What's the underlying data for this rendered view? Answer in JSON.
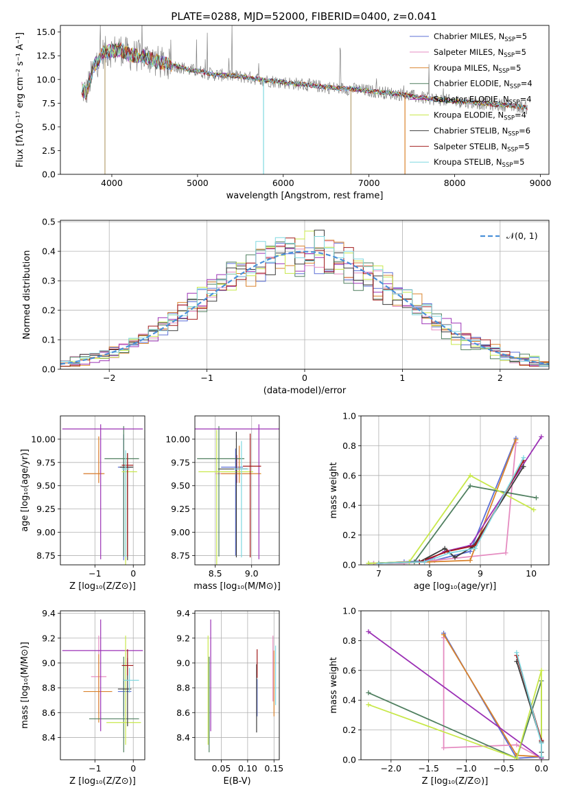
{
  "figure": {
    "title": "PLATE=0288, MJD=52000, FIBERID=0400, z=0.041"
  },
  "models": [
    {
      "name": "Chabrier MILES",
      "nssp": "5",
      "color": "#5b6fd6"
    },
    {
      "name": "Salpeter MILES",
      "nssp": "5",
      "color": "#e58bc0"
    },
    {
      "name": "Kroupa MILES",
      "nssp": "5",
      "color": "#d9822b"
    },
    {
      "name": "Chabrier ELODIE",
      "nssp": "4",
      "color": "#4f7f5f"
    },
    {
      "name": "Salpeter ELODIE",
      "nssp": "4",
      "color": "#9b30b5"
    },
    {
      "name": "Kroupa ELODIE",
      "nssp": "4",
      "color": "#c8e84a"
    },
    {
      "name": "Chabrier STELIB",
      "nssp": "6",
      "color": "#3a3a3a"
    },
    {
      "name": "Salpeter STELIB",
      "nssp": "5",
      "color": "#a01818"
    },
    {
      "name": "Kroupa STELIB",
      "nssp": "5",
      "color": "#7fd8e0"
    }
  ],
  "legend_nssp_label": "N",
  "legend_nssp_sub": "SSP",
  "chart_data": [
    {
      "id": "spectrum",
      "type": "line",
      "xlabel": "wavelength [Angstrom, rest frame]",
      "ylabel": "Flux [fλ10⁻¹⁷ erg cm⁻² s⁻¹ A⁻¹]",
      "xlim": [
        3400,
        9100
      ],
      "ylim": [
        0,
        15.7
      ],
      "xticks": [
        4000,
        5000,
        6000,
        7000,
        8000,
        9000
      ],
      "yticks": [
        0.0,
        2.5,
        5.0,
        7.5,
        10.0,
        12.5,
        15.0
      ],
      "data_color": "#808080",
      "continuum": {
        "x": [
          3650,
          3700,
          3800,
          3900,
          4000,
          4100,
          4200,
          4300,
          4400,
          4500,
          4600,
          4700,
          4800,
          4900,
          5000,
          5200,
          5400,
          5600,
          5800,
          6000,
          6200,
          6400,
          6600,
          6800,
          7000,
          7200,
          7400,
          7600,
          7800,
          8000,
          8200,
          8400,
          8600,
          8800,
          8850
        ],
        "y": [
          9.0,
          8.6,
          11.5,
          12.8,
          13.0,
          13.2,
          12.6,
          12.5,
          12.4,
          12.0,
          11.7,
          11.5,
          11.3,
          11.0,
          10.9,
          10.5,
          10.4,
          10.2,
          9.9,
          9.7,
          9.5,
          9.3,
          9.1,
          9.0,
          8.8,
          8.6,
          8.4,
          8.1,
          7.9,
          7.7,
          7.6,
          7.4,
          7.3,
          7.1,
          7.0
        ]
      },
      "dips": [
        {
          "x": 3920,
          "y": 0.0
        },
        {
          "x": 5770,
          "y": 0.0
        },
        {
          "x": 6790,
          "y": 0.0
        },
        {
          "x": 7420,
          "y": 0.0
        }
      ]
    },
    {
      "id": "residuals",
      "type": "histogram",
      "xlabel": "(data-model)/error",
      "ylabel": "Normed distribution",
      "xlim": [
        -2.5,
        2.5
      ],
      "ylim": [
        0,
        0.505
      ],
      "xticks": [
        -2,
        -1,
        0,
        1,
        2
      ],
      "yticks": [
        0.0,
        0.1,
        0.2,
        0.3,
        0.4,
        0.5
      ],
      "bin_width": 0.1,
      "reference": {
        "name": "𝒩(0, 1)",
        "color": "#4a90d9",
        "mean": 0,
        "sigma": 1
      }
    },
    {
      "id": "age-vs-Z",
      "type": "errorbar",
      "xlabel": "Z [log₁₀(Z/Z⊙)]",
      "ylabel": "age  [log₁₀(age/yr)]",
      "xlim": [
        -1.9,
        0.3
      ],
      "ylim": [
        8.65,
        10.25
      ],
      "xticks": [
        -1,
        0
      ],
      "yticks": [
        8.75,
        9.0,
        9.25,
        9.5,
        9.75,
        10.0
      ],
      "points": [
        {
          "model": 0,
          "x": -0.25,
          "y": 9.7,
          "xerr": [
            0.15,
            0.2
          ],
          "yerr": [
            1.0,
            0.35
          ]
        },
        {
          "model": 1,
          "x": -0.9,
          "y": 9.63,
          "xerr": [
            0.4,
            0.1
          ],
          "yerr": [
            0.1,
            0.25
          ]
        },
        {
          "model": 2,
          "x": -0.9,
          "y": 9.63,
          "xerr": [
            0.4,
            0.15
          ],
          "yerr": [
            0.1,
            0.4
          ]
        },
        {
          "model": 3,
          "x": -0.25,
          "y": 9.79,
          "xerr": [
            0.5,
            0.4
          ],
          "yerr": [
            1.05,
            0.35
          ]
        },
        {
          "model": 4,
          "x": -0.85,
          "y": 10.11,
          "xerr": [
            1.0,
            1.1
          ],
          "yerr": [
            1.4,
            0.05
          ]
        },
        {
          "model": 5,
          "x": -0.2,
          "y": 9.65,
          "xerr": [
            0.1,
            0.3
          ],
          "yerr": [
            1.0,
            0.2
          ]
        },
        {
          "model": 6,
          "x": -0.15,
          "y": 9.7,
          "xerr": [
            0.2,
            0.15
          ],
          "yerr": [
            1.0,
            0.15
          ]
        },
        {
          "model": 7,
          "x": -0.15,
          "y": 9.72,
          "xerr": [
            0.15,
            0.15
          ],
          "yerr": [
            0.98,
            0.13
          ]
        },
        {
          "model": 8,
          "x": -0.2,
          "y": 9.68,
          "xerr": [
            0.1,
            0.1
          ],
          "yerr": [
            0.95,
            0.2
          ]
        }
      ]
    },
    {
      "id": "age-vs-mass",
      "type": "errorbar",
      "xlabel": "mass [log₁₀(M/M⊙)]",
      "ylabel": "",
      "xlim": [
        8.22,
        9.38
      ],
      "ylim": [
        8.65,
        10.25
      ],
      "xticks": [
        8.5,
        9.0
      ],
      "yticks": [
        8.75,
        9.0,
        9.25,
        9.5,
        9.75,
        10.0
      ],
      "points": [
        {
          "model": 0,
          "x": 8.78,
          "y": 9.7,
          "xerr": [
            0.2,
            0.1
          ],
          "yerr": [
            0.95,
            0.2
          ]
        },
        {
          "model": 1,
          "x": 8.8,
          "y": 9.63,
          "xerr": [
            0.3,
            0.2
          ],
          "yerr": [
            0.1,
            0.2
          ]
        },
        {
          "model": 2,
          "x": 8.83,
          "y": 9.63,
          "xerr": [
            0.25,
            0.3
          ],
          "yerr": [
            0.1,
            0.3
          ]
        },
        {
          "model": 3,
          "x": 8.55,
          "y": 9.79,
          "xerr": [
            0.3,
            0.35
          ],
          "yerr": [
            1.05,
            0.35
          ]
        },
        {
          "model": 4,
          "x": 9.1,
          "y": 10.11,
          "xerr": [
            0.9,
            0.3
          ],
          "yerr": [
            1.4,
            0.05
          ]
        },
        {
          "model": 5,
          "x": 8.52,
          "y": 9.65,
          "xerr": [
            0.25,
            0.5
          ],
          "yerr": [
            1.0,
            0.45
          ]
        },
        {
          "model": 6,
          "x": 8.79,
          "y": 9.68,
          "xerr": [
            0.25,
            0.15
          ],
          "yerr": [
            0.95,
            0.4
          ]
        },
        {
          "model": 7,
          "x": 8.98,
          "y": 9.71,
          "xerr": [
            0.1,
            0.15
          ],
          "yerr": [
            0.98,
            0.35
          ]
        },
        {
          "model": 8,
          "x": 8.86,
          "y": 9.68,
          "xerr": [
            0.1,
            0.1
          ],
          "yerr": [
            0.95,
            0.3
          ]
        }
      ]
    },
    {
      "id": "weight-vs-age",
      "type": "line",
      "xlabel": "age  [log₁₀(age/yr)]",
      "ylabel": "mass weight",
      "xlim": [
        6.65,
        10.35
      ],
      "ylim": [
        0,
        1.0
      ],
      "xticks": [
        7,
        8,
        9,
        10
      ],
      "yticks": [
        0.0,
        0.2,
        0.4,
        0.6,
        0.8,
        1.0
      ],
      "series": [
        {
          "model": 0,
          "x": [
            6.9,
            7.5,
            8.1,
            8.8,
            9.7
          ],
          "y": [
            0.01,
            0.02,
            0.03,
            0.09,
            0.85
          ]
        },
        {
          "model": 1,
          "x": [
            6.9,
            7.5,
            8.1,
            9.5,
            9.7
          ],
          "y": [
            0.01,
            0.01,
            0.03,
            0.08,
            0.82
          ]
        },
        {
          "model": 2,
          "x": [
            7.0,
            8.0,
            8.8,
            9.7
          ],
          "y": [
            0.01,
            0.02,
            0.03,
            0.84
          ]
        },
        {
          "model": 3,
          "x": [
            6.8,
            7.7,
            8.8,
            10.1
          ],
          "y": [
            0.01,
            0.02,
            0.53,
            0.45
          ]
        },
        {
          "model": 4,
          "x": [
            7.0,
            7.9,
            8.3,
            8.8,
            10.2
          ],
          "y": [
            0.01,
            0.02,
            0.09,
            0.13,
            0.86
          ]
        },
        {
          "model": 5,
          "x": [
            6.8,
            7.6,
            8.8,
            10.05
          ],
          "y": [
            0.01,
            0.02,
            0.6,
            0.37
          ]
        },
        {
          "model": 6,
          "x": [
            7.0,
            7.8,
            8.3,
            8.5,
            8.85,
            9.85
          ],
          "y": [
            0.01,
            0.02,
            0.11,
            0.05,
            0.12,
            0.66
          ]
        },
        {
          "model": 7,
          "x": [
            7.0,
            7.8,
            8.35,
            8.9,
            9.85
          ],
          "y": [
            0.01,
            0.02,
            0.09,
            0.13,
            0.7
          ]
        },
        {
          "model": 8,
          "x": [
            7.0,
            7.9,
            8.4,
            8.9,
            9.85
          ],
          "y": [
            0.01,
            0.02,
            0.08,
            0.11,
            0.72
          ]
        }
      ]
    },
    {
      "id": "mass-vs-Z",
      "type": "errorbar",
      "xlabel": "Z [log₁₀(Z/Z⊙)]",
      "ylabel": "mass [log₁₀(M/M⊙)]",
      "xlim": [
        -1.9,
        0.3
      ],
      "ylim": [
        8.22,
        9.42
      ],
      "xticks": [
        -1,
        0
      ],
      "yticks": [
        8.4,
        8.6,
        8.8,
        9.0,
        9.2,
        9.4
      ],
      "points": [
        {
          "model": 0,
          "x": -0.25,
          "y": 8.77,
          "xerr": [
            0.15,
            0.2
          ],
          "yerr": [
            0.2,
            0.1
          ]
        },
        {
          "model": 1,
          "x": -0.9,
          "y": 8.89,
          "xerr": [
            0.2,
            0.2
          ],
          "yerr": [
            0.3,
            0.33
          ]
        },
        {
          "model": 2,
          "x": -0.9,
          "y": 8.77,
          "xerr": [
            0.4,
            0.35
          ],
          "yerr": [
            0.25,
            0.3
          ]
        },
        {
          "model": 3,
          "x": -0.25,
          "y": 8.55,
          "xerr": [
            0.9,
            0.4
          ],
          "yerr": [
            0.27,
            0.5
          ]
        },
        {
          "model": 4,
          "x": -0.85,
          "y": 9.1,
          "xerr": [
            1.0,
            1.1
          ],
          "yerr": [
            0.65,
            0.25
          ]
        },
        {
          "model": 5,
          "x": -0.2,
          "y": 8.52,
          "xerr": [
            0.5,
            0.4
          ],
          "yerr": [
            0.18,
            0.7
          ]
        },
        {
          "model": 6,
          "x": -0.15,
          "y": 8.79,
          "xerr": [
            0.25,
            0.1
          ],
          "yerr": [
            0.3,
            0.25
          ]
        },
        {
          "model": 7,
          "x": -0.15,
          "y": 8.98,
          "xerr": [
            0.15,
            0.15
          ],
          "yerr": [
            0.08,
            0.13
          ]
        },
        {
          "model": 8,
          "x": -0.1,
          "y": 8.86,
          "xerr": [
            0.15,
            0.25
          ],
          "yerr": [
            0.1,
            0.1
          ]
        }
      ]
    },
    {
      "id": "mass-vs-ebv",
      "type": "errorbar",
      "xlabel": "E(B-V)",
      "ylabel": "",
      "xlim": [
        0.0,
        0.16
      ],
      "ylim": [
        8.22,
        9.42
      ],
      "xticks": [
        0.05,
        0.1,
        0.15
      ],
      "yticks": [
        8.4,
        8.6,
        8.8,
        9.0,
        9.2,
        9.4
      ],
      "points": [
        {
          "model": 0,
          "x": 0.118,
          "y": 8.77,
          "xerr": [
            0,
            0
          ],
          "yerr": [
            0.2,
            0.1
          ]
        },
        {
          "model": 1,
          "x": 0.148,
          "y": 8.89,
          "xerr": [
            0,
            0
          ],
          "yerr": [
            0.2,
            0.33
          ]
        },
        {
          "model": 2,
          "x": 0.15,
          "y": 8.77,
          "xerr": [
            0,
            0
          ],
          "yerr": [
            0.2,
            0.33
          ]
        },
        {
          "model": 3,
          "x": 0.027,
          "y": 8.55,
          "xerr": [
            0,
            0
          ],
          "yerr": [
            0.27,
            0.5
          ]
        },
        {
          "model": 4,
          "x": 0.03,
          "y": 9.1,
          "xerr": [
            0,
            0
          ],
          "yerr": [
            0.65,
            0.25
          ]
        },
        {
          "model": 5,
          "x": 0.025,
          "y": 8.52,
          "xerr": [
            0,
            0
          ],
          "yerr": [
            0.18,
            0.7
          ]
        },
        {
          "model": 6,
          "x": 0.117,
          "y": 8.79,
          "xerr": [
            0,
            0
          ],
          "yerr": [
            0.35,
            0.2
          ]
        },
        {
          "model": 7,
          "x": 0.118,
          "y": 8.98,
          "xerr": [
            0,
            0
          ],
          "yerr": [
            0.1,
            0.13
          ]
        },
        {
          "model": 8,
          "x": 0.153,
          "y": 8.86,
          "xerr": [
            0,
            0
          ],
          "yerr": [
            0.2,
            0.28
          ]
        }
      ]
    },
    {
      "id": "weight-vs-Z",
      "type": "line",
      "xlabel": "Z [log₁₀(Z/Z⊙)]",
      "ylabel": "mass weight",
      "xlim": [
        -2.4,
        0.1
      ],
      "ylim": [
        0,
        1.0
      ],
      "xticks": [
        -2.0,
        -1.5,
        -1.0,
        -0.5,
        0.0
      ],
      "yticks": [
        0.0,
        0.2,
        0.4,
        0.6,
        0.8,
        1.0
      ],
      "series": [
        {
          "model": 0,
          "x": [
            -1.3,
            -0.33,
            0.0
          ],
          "y": [
            0.85,
            0.01,
            0.02
          ]
        },
        {
          "model": 1,
          "x": [
            -1.3,
            -1.3,
            -0.33,
            0.0
          ],
          "y": [
            0.82,
            0.08,
            0.1,
            0.01
          ]
        },
        {
          "model": 2,
          "x": [
            -1.3,
            -0.33,
            0.0
          ],
          "y": [
            0.84,
            0.03,
            0.02
          ]
        },
        {
          "model": 3,
          "x": [
            -2.3,
            -0.33,
            0.0,
            0.0
          ],
          "y": [
            0.45,
            0.01,
            0.53,
            0.02
          ]
        },
        {
          "model": 4,
          "x": [
            -2.3,
            0.0,
            0.0
          ],
          "y": [
            0.86,
            0.01,
            0.13
          ]
        },
        {
          "model": 5,
          "x": [
            -2.3,
            -0.33,
            0.0,
            0.0
          ],
          "y": [
            0.37,
            0.01,
            0.6,
            0.02
          ]
        },
        {
          "model": 6,
          "x": [
            -0.33,
            0.0,
            0.0
          ],
          "y": [
            0.66,
            0.12,
            0.05
          ]
        },
        {
          "model": 7,
          "x": [
            -0.33,
            0.0,
            0.0
          ],
          "y": [
            0.7,
            0.13,
            0.02
          ]
        },
        {
          "model": 8,
          "x": [
            -0.33,
            0.0,
            0.0
          ],
          "y": [
            0.72,
            0.11,
            0.02
          ]
        }
      ]
    }
  ]
}
